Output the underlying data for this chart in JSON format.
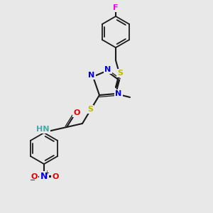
{
  "bg_color": "#e8e8e8",
  "bond_color": "#1a1a1a",
  "bond_lw": 1.5,
  "aromatic_lw": 1.3,
  "atom_colors": {
    "N": "#0000dd",
    "O": "#dd0000",
    "S": "#bbbb00",
    "F": "#ee00ee",
    "C": "#1a1a1a",
    "H": "#44aaaa"
  },
  "font_size": 8,
  "font_size_small": 7
}
